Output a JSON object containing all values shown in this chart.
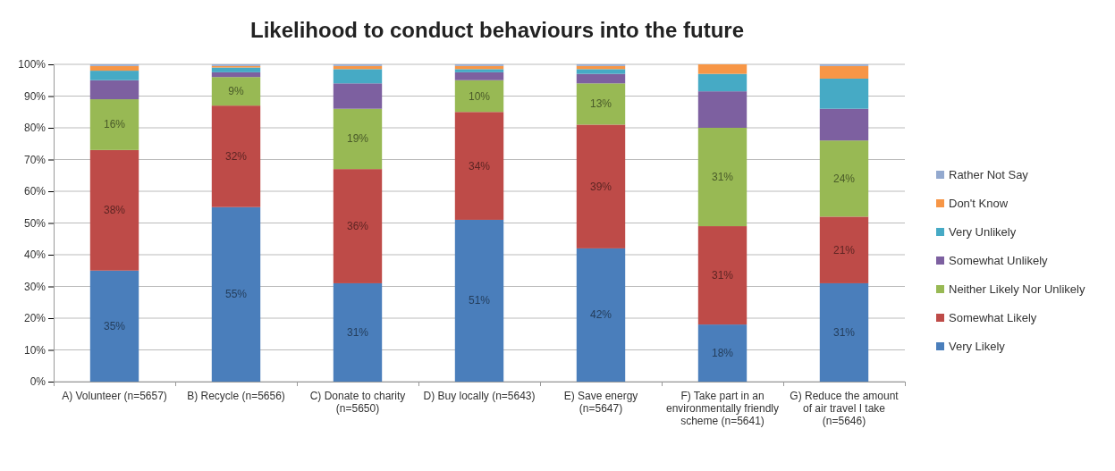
{
  "chart_data": {
    "type": "bar",
    "stacked": true,
    "title": "Likelihood to conduct behaviours into the future",
    "categories": [
      "A) Volunteer (n=5657)",
      "B) Recycle (n=5656)",
      "C) Donate to charity (n=5650)",
      "D) Buy locally (n=5643)",
      "E) Save energy (n=5647)",
      "F) Take part in an environmentally friendly scheme (n=5641)",
      "G) Reduce the amount of air travel I take (n=5646)"
    ],
    "series": [
      {
        "name": "Very Likely",
        "color": "#4a7ebb",
        "values": [
          35,
          55,
          31,
          51,
          42,
          18,
          31
        ],
        "value_labels": [
          "35%",
          "55%",
          "31%",
          "51%",
          "42%",
          "18%",
          "31%"
        ]
      },
      {
        "name": "Somewhat Likely",
        "color": "#be4b48",
        "values": [
          38,
          32,
          36,
          34,
          39,
          31,
          21
        ],
        "value_labels": [
          "38%",
          "32%",
          "36%",
          "34%",
          "39%",
          "31%",
          "21%"
        ]
      },
      {
        "name": "Neither Likely Nor Unlikely",
        "color": "#98b954",
        "values": [
          16,
          9,
          19,
          10,
          13,
          31,
          24
        ],
        "value_labels": [
          "16%",
          "9%",
          "19%",
          "10%",
          "13%",
          "31%",
          "24%"
        ]
      },
      {
        "name": "Somewhat Unlikely",
        "color": "#7d60a0",
        "values": [
          6,
          1.5,
          8,
          2.5,
          3,
          11.5,
          10
        ]
      },
      {
        "name": "Very Unlikely",
        "color": "#46aac5",
        "values": [
          3,
          1.5,
          4.5,
          1,
          1.5,
          5.5,
          9.5
        ]
      },
      {
        "name": "Don't Know",
        "color": "#f79646",
        "values": [
          1.5,
          0.5,
          1,
          1,
          1,
          3,
          4
        ]
      },
      {
        "name": "Rather Not Say",
        "color": "#93a9cf",
        "values": [
          0.5,
          0.5,
          0.5,
          0.5,
          0.5,
          0,
          0.5
        ]
      }
    ],
    "ylim": [
      0,
      100
    ],
    "yticks": [
      {
        "value": 0,
        "label": "0%"
      },
      {
        "value": 10,
        "label": "10%"
      },
      {
        "value": 20,
        "label": "20%"
      },
      {
        "value": 30,
        "label": "30%"
      },
      {
        "value": 40,
        "label": "40%"
      },
      {
        "value": 50,
        "label": "50%"
      },
      {
        "value": 60,
        "label": "60%"
      },
      {
        "value": 70,
        "label": "70%"
      },
      {
        "value": 80,
        "label": "80%"
      },
      {
        "value": 90,
        "label": "90%"
      },
      {
        "value": 100,
        "label": "100%"
      }
    ],
    "grid": "y",
    "legend": "right"
  }
}
